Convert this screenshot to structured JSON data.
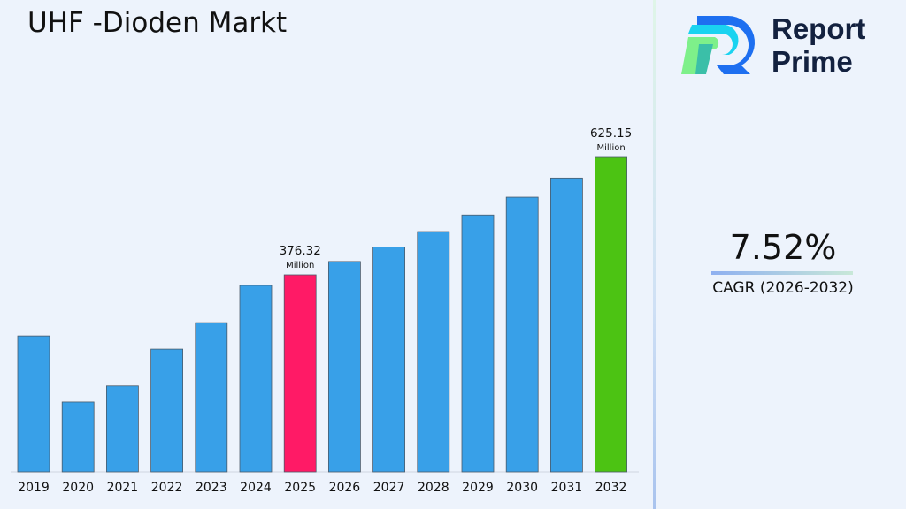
{
  "title": "UHF -Dioden Markt",
  "brand": {
    "line1": "Report",
    "line2": "Prime"
  },
  "cagr": {
    "value": "7.52%",
    "label": "CAGR (2026-2032)"
  },
  "chart_data": {
    "type": "bar",
    "title": "UHF -Dioden Markt",
    "categories": [
      "2019",
      "2020",
      "2021",
      "2022",
      "2023",
      "2024",
      "2025",
      "2026",
      "2027",
      "2028",
      "2029",
      "2030",
      "2031",
      "2032"
    ],
    "values": [
      247,
      107,
      141,
      219,
      275,
      354,
      376.32,
      404.6,
      435.2,
      467.9,
      503.1,
      540.9,
      581.5,
      625.15
    ],
    "unit": "Million",
    "colors": {
      "default": "#38a0e8",
      "highlight_2025": "#ff1a66",
      "highlight_2032": "#4cc313"
    },
    "data_labels": [
      {
        "category": "2025",
        "value": "376.32",
        "unit": "Million"
      },
      {
        "category": "2032",
        "value": "625.15",
        "unit": "Million"
      }
    ],
    "grid": false,
    "legend": "none"
  }
}
